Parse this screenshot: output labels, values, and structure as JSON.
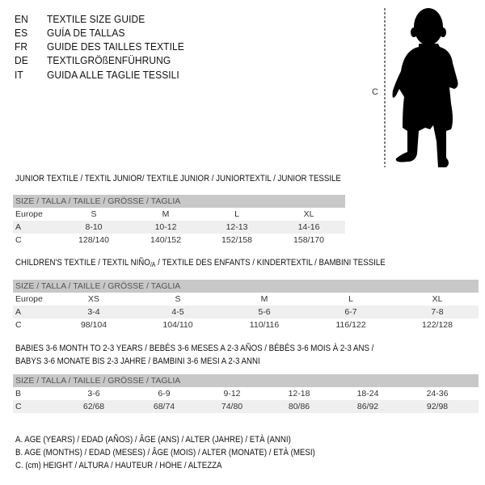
{
  "header": {
    "languages": [
      {
        "code": "EN",
        "text": "TEXTILE SIZE GUIDE"
      },
      {
        "code": "ES",
        "text": "GUÍA DE TALLAS"
      },
      {
        "code": "FR",
        "text": "GUIDE DES TAILLES TEXTILE"
      },
      {
        "code": "DE",
        "text": "TEXTILGRÖßENFÜHRUNG"
      },
      {
        "code": "IT",
        "text": "GUIDA ALLE TAGLIE TESSILI"
      }
    ],
    "figure_label": "C"
  },
  "size_header": "SIZE / TALLA / TAILLE / GRÖSSE / TAGLIA",
  "junior": {
    "title": "JUNIOR TEXTILE / TEXTIL JUNIOR/ TEXTILE JUNIOR / JUNIORTEXTIL / JUNIOR TESSILE",
    "rows": [
      {
        "label": "Europe",
        "values": [
          "S",
          "M",
          "L",
          "XL"
        ]
      },
      {
        "label": "A",
        "values": [
          "8-10",
          "10-12",
          "12-13",
          "14-16"
        ]
      },
      {
        "label": "C",
        "values": [
          "128/140",
          "140/152",
          "152/158",
          "158/170"
        ]
      }
    ]
  },
  "children": {
    "title_a": "CHILDREN'S TEXTILE / TEXTIL NIÑO",
    "title_sub": "/A",
    "title_b": " / TEXTILE DES ENFANTS / KINDERTEXTIL / BAMBINI TESSILE",
    "rows": [
      {
        "label": "Europe",
        "values": [
          "XS",
          "S",
          "M",
          "L",
          "XL"
        ]
      },
      {
        "label": "A",
        "values": [
          "3-4",
          "4-5",
          "5-6",
          "6-7",
          "7-8"
        ]
      },
      {
        "label": "C",
        "values": [
          "98/104",
          "104/110",
          "110/116",
          "116/122",
          "122/128"
        ]
      }
    ]
  },
  "babies": {
    "title_line1": "BABIES 3-6 MONTH TO 2-3 YEARS / BEBÉS 3-6 MESES A 2-3 AÑOS / BÉBÉS 3-6 MOIS À 2-3 ANS /",
    "title_line2": "BABYS 3-6 MONATE BIS 2-3 JAHRE / BAMBINI 3-6 MESI A 2-3 ANNI",
    "rows": [
      {
        "label": "B",
        "values": [
          "3-6",
          "6-9",
          "9-12",
          "12-18",
          "18-24",
          "24-36"
        ]
      },
      {
        "label": "C",
        "values": [
          "62/68",
          "68/74",
          "74/80",
          "80/86",
          "86/92",
          "92/98"
        ]
      }
    ]
  },
  "legend": [
    "A. AGE (YEARS) / EDAD (AÑOS) / ÂGE (ANS) / ALTER (JAHRE) / ETÀ (ANNI)",
    "B. AGE (MONTHS) / EDAD (MESES) / ÂGE (MOIS) / ALTER (MONATE) / ETÀ (MESI)",
    "C. (cm) HEIGHT / ALTURA / HAUTEUR / HÖHE / ALTEZZA"
  ]
}
